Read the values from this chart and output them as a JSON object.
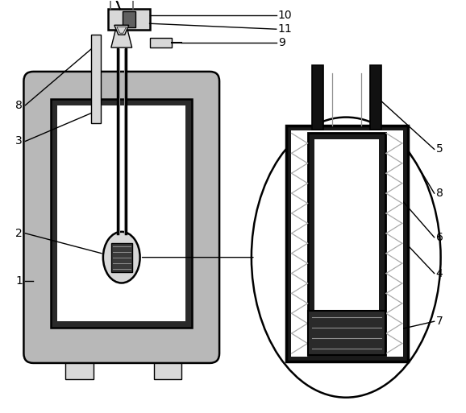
{
  "bg_color": "#ffffff",
  "gray": "#b8b8b8",
  "dark_gray": "#606060",
  "black": "#000000",
  "light_gray": "#d8d8d8",
  "medium_gray": "#909090",
  "near_black": "#1a1a1a",
  "figsize": [
    5.78,
    5.13
  ],
  "dpi": 100
}
